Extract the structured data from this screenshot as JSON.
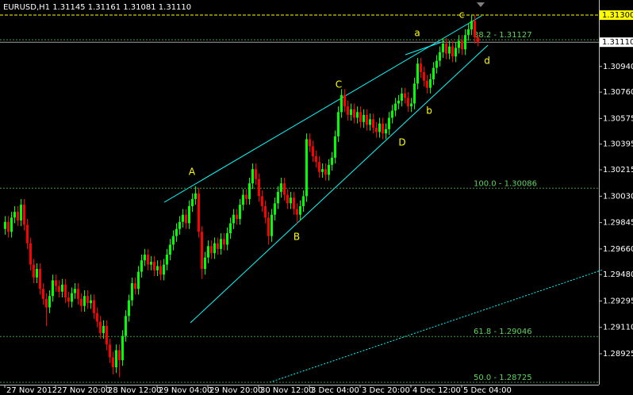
{
  "chart_data": {
    "type": "candlestick",
    "title": "EURUSD,H1  1.31145 1.31161 1.31081 1.31110",
    "categories": [
      "27 Nov 2012",
      null,
      null,
      null,
      null,
      null,
      null,
      null,
      null,
      null,
      null,
      null,
      null,
      null,
      null,
      null,
      "27 Nov 20:00",
      null,
      null,
      null,
      null,
      null,
      null,
      null,
      null,
      null,
      null,
      null,
      null,
      null,
      null,
      null,
      "28 Nov 12:00",
      null,
      null,
      null,
      null,
      null,
      null,
      null,
      null,
      null,
      null,
      null,
      null,
      null,
      null,
      null,
      "29 Nov 04:00",
      null,
      null,
      null,
      null,
      null,
      null,
      null,
      null,
      null,
      null,
      null,
      null,
      null,
      null,
      null,
      "29 Nov 20:00",
      null,
      null,
      null,
      null,
      null,
      null,
      null,
      null,
      null,
      null,
      null,
      null,
      null,
      null,
      null,
      "30 Nov 12:00",
      null,
      null,
      null,
      null,
      null,
      null,
      null,
      null,
      null,
      null,
      null,
      null,
      null,
      null,
      null,
      "3 Dec 04:00",
      null,
      null,
      null,
      null,
      null,
      null,
      null,
      null,
      null,
      null,
      null,
      null,
      null,
      null,
      null,
      "3 Dec 20:00",
      null,
      null,
      null,
      null,
      null,
      null,
      null,
      null,
      null,
      null,
      null,
      null,
      null,
      null,
      null,
      "4 Dec 12:00",
      null,
      null,
      null,
      null,
      null,
      null,
      null,
      null,
      null,
      null,
      null,
      null,
      null,
      null,
      null,
      "5 Dec 04:00",
      null,
      null,
      null,
      null,
      null
    ],
    "open": [
      1.298,
      1.2985,
      1.2978,
      1.2988,
      1.2992,
      1.2986,
      1.2997,
      1.2983,
      1.297,
      1.2955,
      1.2946,
      1.2952,
      1.2938,
      1.2931,
      1.2925,
      1.2933,
      1.2944,
      1.294,
      1.2936,
      1.2941,
      1.2932,
      1.2929,
      1.2935,
      1.2938,
      1.2931,
      1.2926,
      1.2933,
      1.2928,
      1.293,
      1.2921,
      1.2915,
      1.2907,
      1.2912,
      1.2899,
      1.289,
      1.2883,
      1.2895,
      1.2888,
      1.2905,
      1.2919,
      1.293,
      1.2942,
      1.2938,
      1.295,
      1.2958,
      1.2962,
      1.2955,
      1.2957,
      1.2951,
      1.2954,
      1.2948,
      1.2955,
      1.2962,
      1.2969,
      1.2975,
      1.298,
      1.2985,
      1.299,
      1.2984,
      1.2996,
      1.3001,
      1.3005,
      1.2978,
      1.2952,
      1.296,
      1.2968,
      1.2963,
      1.297,
      1.2966,
      1.2973,
      1.2969,
      1.2977,
      1.2984,
      1.299,
      1.2987,
      1.2997,
      1.3004,
      1.3001,
      1.3012,
      1.3022,
      1.3015,
      1.3003,
      1.2996,
      1.2988,
      1.2975,
      1.299,
      1.2998,
      1.3006,
      1.3012,
      1.3004,
      1.2998,
      1.3002,
      1.2994,
      1.299,
      1.2996,
      1.3003,
      1.3043,
      1.3038,
      1.3031,
      1.3027,
      1.302,
      1.3022,
      1.3018,
      1.3025,
      1.303,
      1.3045,
      1.3062,
      1.3074,
      1.3066,
      1.306,
      1.3064,
      1.3058,
      1.3062,
      1.3055,
      1.306,
      1.3053,
      1.3057,
      1.3051,
      1.3048,
      1.3054,
      1.3047,
      1.305,
      1.3058,
      1.3063,
      1.3068,
      1.307,
      1.3075,
      1.3072,
      1.3066,
      1.3068,
      1.3082,
      1.3096,
      1.309,
      1.3084,
      1.3079,
      1.3085,
      1.3093,
      1.3098,
      1.3104,
      1.311,
      1.3103,
      1.3108,
      1.3101,
      1.3107,
      1.3112,
      1.3106,
      1.3116,
      1.312,
      1.3126,
      1.31145
    ],
    "high": [
      1.2989,
      1.2989,
      1.2992,
      1.2996,
      1.2996,
      1.3001,
      1.3001,
      1.2987,
      1.2974,
      1.2959,
      1.2956,
      1.2956,
      1.2942,
      1.2935,
      1.2937,
      1.2948,
      1.2948,
      1.2944,
      1.2945,
      1.2945,
      1.2936,
      1.2939,
      1.2942,
      1.2942,
      1.2935,
      1.2937,
      1.2937,
      1.2934,
      1.2934,
      1.2925,
      1.2919,
      1.2916,
      1.2916,
      1.2903,
      1.2894,
      1.2899,
      1.2899,
      1.2909,
      1.2923,
      1.2934,
      1.2946,
      1.2946,
      1.2954,
      1.2962,
      1.2966,
      1.2966,
      1.2961,
      1.2961,
      1.2958,
      1.2958,
      1.2959,
      1.2966,
      1.2973,
      1.2979,
      1.2984,
      1.2989,
      1.2994,
      1.2994,
      1.3,
      1.3005,
      1.301,
      1.3009,
      1.2982,
      1.2964,
      1.2972,
      1.2972,
      1.2974,
      1.2974,
      1.2977,
      1.2977,
      1.2981,
      1.2988,
      1.2994,
      1.2994,
      1.3001,
      1.3008,
      1.3008,
      1.3016,
      1.3026,
      1.3026,
      1.3019,
      1.3007,
      1.3,
      1.2992,
      1.2994,
      1.3002,
      1.301,
      1.3016,
      1.3016,
      1.3008,
      1.3006,
      1.3006,
      1.2998,
      1.3,
      1.3007,
      1.3047,
      1.3047,
      1.3042,
      1.3035,
      1.3031,
      1.3026,
      1.3026,
      1.3029,
      1.3034,
      1.3049,
      1.3066,
      1.3078,
      1.3078,
      1.307,
      1.3068,
      1.3068,
      1.3066,
      1.3066,
      1.3064,
      1.3064,
      1.3061,
      1.3061,
      1.3055,
      1.3058,
      1.3058,
      1.3054,
      1.3062,
      1.3067,
      1.3072,
      1.3074,
      1.3079,
      1.3079,
      1.3076,
      1.3072,
      1.3086,
      1.31,
      1.31,
      1.3094,
      1.3088,
      1.3089,
      1.3097,
      1.3102,
      1.3108,
      1.3114,
      1.3114,
      1.3112,
      1.3112,
      1.3111,
      1.3116,
      1.3116,
      1.312,
      1.3124,
      1.313,
      1.313,
      1.31161
    ],
    "low": [
      1.2976,
      1.2974,
      1.2974,
      1.2984,
      1.2982,
      1.2982,
      1.2979,
      1.2966,
      1.2951,
      1.2942,
      1.2942,
      1.2934,
      1.2927,
      1.2912,
      1.2921,
      1.2929,
      1.2936,
      1.2932,
      1.2932,
      1.2928,
      1.2925,
      1.2925,
      1.2931,
      1.2927,
      1.2922,
      1.2922,
      1.2924,
      1.2924,
      1.2917,
      1.2911,
      1.2903,
      1.2903,
      1.2895,
      1.2886,
      1.2878,
      1.2879,
      1.2876,
      1.2884,
      1.2901,
      1.2915,
      1.2926,
      1.2934,
      1.2934,
      1.2946,
      1.2954,
      1.2951,
      1.2951,
      1.2947,
      1.2947,
      1.2944,
      1.2944,
      1.2951,
      1.2958,
      1.2965,
      1.2971,
      1.2976,
      1.2981,
      1.298,
      1.298,
      1.2992,
      1.2997,
      1.2974,
      1.2945,
      1.2948,
      1.2956,
      1.2959,
      1.2959,
      1.2962,
      1.2962,
      1.2965,
      1.2965,
      1.2973,
      1.298,
      1.2983,
      1.2983,
      1.2993,
      1.2997,
      1.2997,
      1.3008,
      1.3011,
      1.2999,
      1.2992,
      1.2984,
      1.2969,
      1.2971,
      1.2986,
      1.2994,
      1.3002,
      1.3,
      1.2994,
      1.2994,
      1.299,
      1.2984,
      1.2986,
      1.2992,
      1.2999,
      1.3034,
      1.3027,
      1.3023,
      1.3016,
      1.3016,
      1.3014,
      1.3014,
      1.3021,
      1.3026,
      1.3041,
      1.3058,
      1.3062,
      1.3056,
      1.3056,
      1.3054,
      1.3054,
      1.3051,
      1.3051,
      1.3049,
      1.3049,
      1.3047,
      1.3044,
      1.3044,
      1.3043,
      1.3043,
      1.3046,
      1.3054,
      1.3059,
      1.3064,
      1.3066,
      1.3068,
      1.3062,
      1.3062,
      1.3064,
      1.3078,
      1.3086,
      1.308,
      1.3075,
      1.3075,
      1.3081,
      1.3089,
      1.3094,
      1.31,
      1.3099,
      1.3099,
      1.3097,
      1.3097,
      1.3103,
      1.3102,
      1.3102,
      1.3112,
      1.3116,
      1.311,
      1.31081
    ],
    "close": [
      1.2985,
      1.2978,
      1.2988,
      1.2992,
      1.2986,
      1.2997,
      1.2983,
      1.297,
      1.2955,
      1.2946,
      1.2952,
      1.2938,
      1.2931,
      1.2925,
      1.2933,
      1.2944,
      1.294,
      1.2936,
      1.2941,
      1.2932,
      1.2929,
      1.2935,
      1.2938,
      1.2931,
      1.2926,
      1.2933,
      1.2928,
      1.293,
      1.2921,
      1.2915,
      1.2907,
      1.2912,
      1.2899,
      1.289,
      1.2883,
      1.2895,
      1.2888,
      1.2905,
      1.2919,
      1.293,
      1.2942,
      1.2938,
      1.295,
      1.2958,
      1.2962,
      1.2955,
      1.2957,
      1.2951,
      1.2954,
      1.2948,
      1.2955,
      1.2962,
      1.2969,
      1.2975,
      1.298,
      1.2985,
      1.299,
      1.2984,
      1.2996,
      1.3001,
      1.3005,
      1.2978,
      1.2952,
      1.296,
      1.2968,
      1.2963,
      1.297,
      1.2966,
      1.2973,
      1.2969,
      1.2977,
      1.2984,
      1.299,
      1.2987,
      1.2997,
      1.3004,
      1.3001,
      1.3012,
      1.3022,
      1.3015,
      1.3003,
      1.2996,
      1.2988,
      1.2975,
      1.299,
      1.2998,
      1.3006,
      1.3012,
      1.3004,
      1.2998,
      1.3002,
      1.2994,
      1.299,
      1.2996,
      1.3003,
      1.3043,
      1.3038,
      1.3031,
      1.3027,
      1.302,
      1.3022,
      1.3018,
      1.3025,
      1.303,
      1.3045,
      1.3062,
      1.3074,
      1.3066,
      1.306,
      1.3064,
      1.3058,
      1.3062,
      1.3055,
      1.306,
      1.3053,
      1.3057,
      1.3051,
      1.3048,
      1.3054,
      1.3047,
      1.305,
      1.3058,
      1.3063,
      1.3068,
      1.307,
      1.3075,
      1.3072,
      1.3066,
      1.3068,
      1.3082,
      1.3096,
      1.309,
      1.3084,
      1.3079,
      1.3085,
      1.3093,
      1.3098,
      1.3104,
      1.311,
      1.3103,
      1.3108,
      1.3101,
      1.3107,
      1.3112,
      1.3106,
      1.3116,
      1.312,
      1.3126,
      1.31145,
      1.3111
    ],
    "up_color": "#00ff00",
    "down_color": "#ff0000",
    "ylim": [
      1.28708,
      1.31406
    ],
    "yticks": [
      {
        "value": 1.3094,
        "label": "1.30940"
      },
      {
        "value": 1.3076,
        "label": "1.30760"
      },
      1.30575,
      1.30395,
      1.30215,
      {
        "value": 1.3003,
        "label": "1.30030"
      },
      1.29845,
      {
        "value": 1.2966,
        "label": "1.29660"
      },
      {
        "value": 1.2948,
        "label": "1.29480"
      },
      1.29295,
      {
        "value": 1.2911,
        "label": "1.29110"
      },
      1.28925
    ],
    "grid": false,
    "alert_level": {
      "value": 1.313,
      "label": "1.31300"
    },
    "bid": {
      "value": 1.3111,
      "label": "1.31110"
    },
    "fib_levels": [
      {
        "value": 1.31127,
        "label": "38.2 - 1.31127"
      },
      {
        "value": 1.30086,
        "label": "100.0 - 1.30086"
      },
      {
        "value": 1.29046,
        "label": "61.8 - 1.29046"
      },
      {
        "value": 1.28725,
        "label": "50.0 - 1.28725"
      }
    ],
    "annotations": [
      "A",
      "B",
      "C",
      "D",
      "a",
      "b",
      "c",
      "d"
    ]
  }
}
